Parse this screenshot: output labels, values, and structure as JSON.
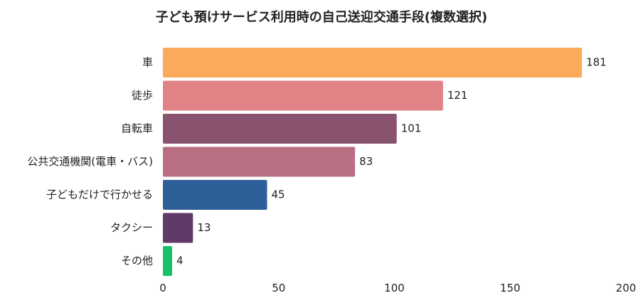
{
  "chart_data": {
    "type": "bar",
    "orientation": "horizontal",
    "title": "子ども預けサービス利用時の自己送迎交通手段(複数選択)",
    "categories": [
      "車",
      "徒歩",
      "自転車",
      "公共交通機関(電車・バス)",
      "子どもだけで行かせる",
      "タクシー",
      "その他"
    ],
    "values": [
      181,
      121,
      101,
      83,
      45,
      13,
      4
    ],
    "colors": [
      "#FBAA5C",
      "#E08286",
      "#89526F",
      "#B97082",
      "#2E5F98",
      "#603B67",
      "#18C06A"
    ],
    "xlim": [
      0,
      200
    ],
    "xticks": [
      0,
      50,
      100,
      150,
      200
    ],
    "grid": false,
    "legend": "none"
  }
}
